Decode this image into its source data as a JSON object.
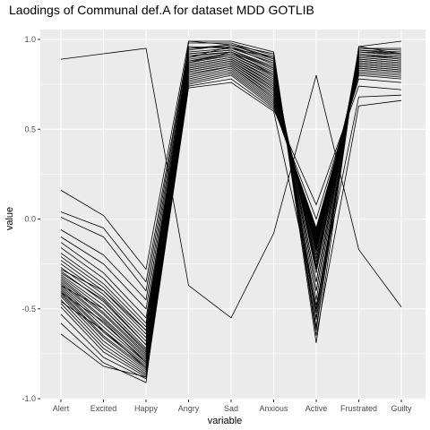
{
  "chart_data": {
    "type": "line",
    "title": "Laodings of Communal def.A for dataset MDD GOTLIB",
    "xlabel": "variable",
    "ylabel": "value",
    "categories": [
      "Alert",
      "Excited",
      "Happy",
      "Angry",
      "Sad",
      "Anxious",
      "Active",
      "Frustrated",
      "Guilty"
    ],
    "ylim": [
      -1.0,
      1.0
    ],
    "yticks": [
      -1.0,
      -0.5,
      0.0,
      0.5,
      1.0
    ],
    "ytick_labels": [
      "-1.0",
      "-0.5",
      "0.0",
      "0.5",
      "1.0"
    ],
    "grid": true,
    "legend": "none",
    "colors": {
      "panel": "#ebebeb",
      "grid_major": "#ffffff",
      "line": "#000000"
    },
    "series": [
      {
        "values": [
          0.89,
          0.92,
          0.95,
          -0.37,
          -0.55,
          -0.08,
          0.8,
          -0.17,
          -0.49
        ]
      },
      {
        "values": [
          0.16,
          0.02,
          -0.28,
          0.99,
          0.97,
          0.92,
          -0.69,
          0.96,
          0.99
        ]
      },
      {
        "values": [
          0.04,
          -0.05,
          -0.35,
          0.96,
          0.95,
          0.9,
          -0.6,
          0.95,
          0.95
        ]
      },
      {
        "values": [
          0.01,
          -0.1,
          -0.4,
          0.95,
          0.96,
          0.88,
          -0.55,
          0.94,
          0.93
        ]
      },
      {
        "values": [
          -0.06,
          -0.2,
          -0.45,
          0.93,
          0.95,
          0.87,
          -0.5,
          0.93,
          0.92
        ]
      },
      {
        "values": [
          -0.1,
          -0.25,
          -0.5,
          0.92,
          0.94,
          0.85,
          -0.45,
          0.93,
          0.91
        ]
      },
      {
        "values": [
          -0.13,
          -0.3,
          -0.55,
          0.91,
          0.93,
          0.84,
          -0.4,
          0.92,
          0.9
        ]
      },
      {
        "values": [
          -0.16,
          -0.33,
          -0.58,
          0.9,
          0.93,
          0.83,
          -0.35,
          0.92,
          0.9
        ]
      },
      {
        "values": [
          -0.19,
          -0.36,
          -0.6,
          0.89,
          0.92,
          0.82,
          -0.3,
          0.91,
          0.89
        ]
      },
      {
        "values": [
          -0.21,
          -0.38,
          -0.62,
          0.88,
          0.92,
          0.81,
          -0.28,
          0.91,
          0.89
        ]
      },
      {
        "values": [
          -0.23,
          -0.4,
          -0.64,
          0.88,
          0.91,
          0.8,
          -0.26,
          0.9,
          0.88
        ]
      },
      {
        "values": [
          -0.25,
          -0.42,
          -0.66,
          0.87,
          0.91,
          0.79,
          -0.24,
          0.9,
          0.88
        ]
      },
      {
        "values": [
          -0.27,
          -0.44,
          -0.68,
          0.86,
          0.9,
          0.78,
          -0.22,
          0.89,
          0.87
        ]
      },
      {
        "values": [
          -0.29,
          -0.46,
          -0.7,
          0.86,
          0.9,
          0.77,
          -0.2,
          0.89,
          0.87
        ]
      },
      {
        "values": [
          -0.31,
          -0.48,
          -0.72,
          0.85,
          0.89,
          0.76,
          -0.18,
          0.88,
          0.86
        ]
      },
      {
        "values": [
          -0.32,
          -0.5,
          -0.73,
          0.85,
          0.89,
          0.75,
          -0.17,
          0.88,
          0.86
        ]
      },
      {
        "values": [
          -0.33,
          -0.52,
          -0.75,
          0.84,
          0.88,
          0.74,
          -0.16,
          0.87,
          0.85
        ]
      },
      {
        "values": [
          -0.34,
          -0.53,
          -0.76,
          0.84,
          0.88,
          0.73,
          -0.15,
          0.87,
          0.85
        ]
      },
      {
        "values": [
          -0.35,
          -0.55,
          -0.77,
          0.83,
          0.87,
          0.72,
          -0.14,
          0.86,
          0.84
        ]
      },
      {
        "values": [
          -0.36,
          -0.56,
          -0.78,
          0.83,
          0.87,
          0.71,
          -0.13,
          0.86,
          0.84
        ]
      },
      {
        "values": [
          -0.37,
          -0.58,
          -0.79,
          0.82,
          0.86,
          0.7,
          -0.12,
          0.85,
          0.83
        ]
      },
      {
        "values": [
          -0.38,
          -0.6,
          -0.8,
          0.82,
          0.86,
          0.69,
          -0.11,
          0.85,
          0.83
        ]
      },
      {
        "values": [
          -0.39,
          -0.62,
          -0.81,
          0.81,
          0.85,
          0.68,
          -0.1,
          0.84,
          0.82
        ]
      },
      {
        "values": [
          -0.4,
          -0.63,
          -0.82,
          0.8,
          0.85,
          0.67,
          -0.09,
          0.84,
          0.82
        ]
      },
      {
        "values": [
          -0.41,
          -0.65,
          -0.83,
          0.79,
          0.84,
          0.66,
          -0.08,
          0.83,
          0.81
        ]
      },
      {
        "values": [
          -0.42,
          -0.66,
          -0.84,
          0.78,
          0.83,
          0.65,
          -0.07,
          0.82,
          0.8
        ]
      },
      {
        "values": [
          -0.43,
          -0.68,
          -0.85,
          0.77,
          0.82,
          0.64,
          -0.06,
          0.81,
          0.79
        ]
      },
      {
        "values": [
          -0.45,
          -0.7,
          -0.86,
          0.76,
          0.81,
          0.63,
          -0.05,
          0.8,
          0.78
        ]
      },
      {
        "values": [
          -0.47,
          -0.72,
          -0.87,
          0.75,
          0.8,
          0.62,
          0.0,
          0.78,
          0.76
        ]
      },
      {
        "values": [
          -0.49,
          -0.74,
          -0.88,
          0.74,
          0.78,
          0.61,
          0.08,
          0.74,
          0.72
        ]
      },
      {
        "values": [
          -0.53,
          -0.77,
          -0.89,
          0.73,
          0.76,
          0.6,
          -0.48,
          0.68,
          0.69
        ]
      },
      {
        "values": [
          -0.58,
          -0.8,
          -0.91,
          0.99,
          0.99,
          0.93,
          -0.65,
          0.63,
          0.66
        ]
      },
      {
        "values": [
          -0.64,
          -0.82,
          -0.88,
          0.98,
          0.98,
          0.91,
          -0.62,
          0.96,
          0.92
        ]
      },
      {
        "values": [
          -0.3,
          -0.45,
          -0.7,
          0.92,
          0.94,
          0.84,
          -0.35,
          0.94,
          0.92
        ]
      },
      {
        "values": [
          -0.28,
          -0.4,
          -0.62,
          0.9,
          0.96,
          0.86,
          -0.4,
          0.95,
          0.94
        ]
      },
      {
        "values": [
          -0.37,
          -0.5,
          -0.74,
          0.87,
          0.93,
          0.8,
          -0.27,
          0.91,
          0.9
        ]
      },
      {
        "values": [
          -0.41,
          -0.57,
          -0.8,
          0.94,
          0.97,
          0.89,
          -0.52,
          0.93,
          0.91
        ]
      },
      {
        "values": [
          -0.46,
          -0.62,
          -0.83,
          0.95,
          0.97,
          0.9,
          -0.56,
          0.94,
          0.92
        ]
      }
    ]
  }
}
